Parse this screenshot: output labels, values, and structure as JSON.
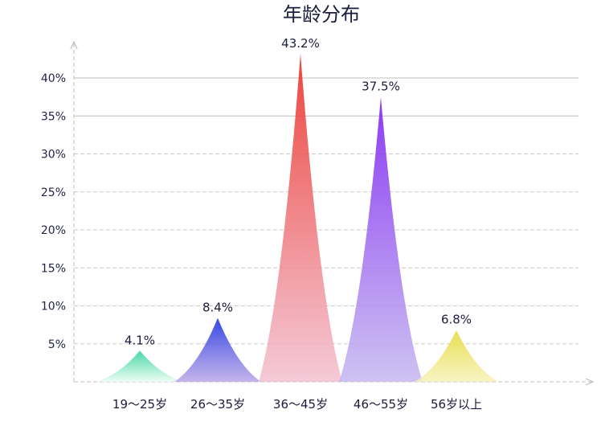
{
  "chart_data": {
    "type": "bar",
    "title": "年龄分布",
    "categories": [
      "19～25岁",
      "26～35岁",
      "36～45岁",
      "46～55岁",
      "56岁以上"
    ],
    "values": [
      4.1,
      8.4,
      43.2,
      37.5,
      6.8
    ],
    "value_labels": [
      "4.1%",
      "8.4%",
      "43.2%",
      "37.5%",
      "6.8%"
    ],
    "y_ticks": [
      {
        "value": 5,
        "label": "5%"
      },
      {
        "value": 10,
        "label": "10%"
      },
      {
        "value": 15,
        "label": "15%"
      },
      {
        "value": 20,
        "label": "20%"
      },
      {
        "value": 25,
        "label": "25%"
      },
      {
        "value": 30,
        "label": "30%"
      },
      {
        "value": 35,
        "label": "35%"
      },
      {
        "value": 40,
        "label": "40%"
      }
    ],
    "ylim": [
      0,
      40
    ],
    "grid": true,
    "colors": [
      {
        "top": "#2ed39a",
        "bottom": "#e8fbf3"
      },
      {
        "top": "#1c2fe0",
        "bottom": "#b9a6e8"
      },
      {
        "top": "#ea2a22",
        "bottom": "#f2bfcf"
      },
      {
        "top": "#7b1ff0",
        "bottom": "#c4b6f0"
      },
      {
        "top": "#e6dc3c",
        "bottom": "#f5f1b6"
      }
    ]
  }
}
